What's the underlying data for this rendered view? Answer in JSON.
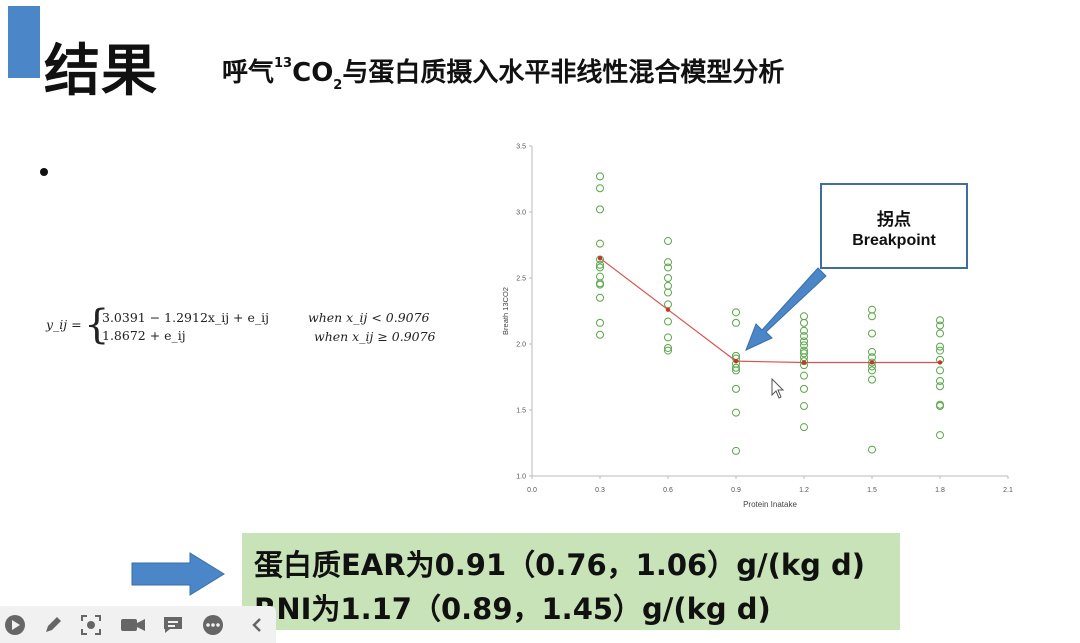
{
  "slide": {
    "heading": "结果",
    "subtitle": {
      "prefix": "呼气",
      "superscript": "13",
      "middle": "CO",
      "subscript": "2",
      "suffix": "与蛋白质摄入水平非线性混合模型分析"
    }
  },
  "equation": {
    "lhs": "y_ij =",
    "row1": "3.0391 − 1.2912x_ij + e_ij",
    "row2": "1.8672 + e_ij",
    "cond1": "when  x_ij < 0.9076",
    "cond2": "when  x_ij ≥ 0.9076"
  },
  "chart_data": {
    "type": "scatter",
    "xlabel": "Protein Inatake",
    "ylabel": "Breath 13CO2",
    "xlim": [
      0.0,
      2.1
    ],
    "ylim": [
      1.0,
      3.5
    ],
    "xticks": [
      "0.0",
      "0.3",
      "0.6",
      "0.9",
      "1.2",
      "1.5",
      "1.8",
      "2.1"
    ],
    "yticks": [
      "1.0",
      "1.5",
      "2.0",
      "2.5",
      "3.0",
      "3.5"
    ],
    "grid": false,
    "point_color": "#5aa64a",
    "line_color": "#d9534f",
    "points": [
      {
        "x": 0.3,
        "y": [
          3.27,
          3.18,
          3.02,
          2.76,
          2.64,
          2.6,
          2.58,
          2.51,
          2.46,
          2.45,
          2.35,
          2.16,
          2.07
        ]
      },
      {
        "x": 0.6,
        "y": [
          2.78,
          2.62,
          2.58,
          2.5,
          2.44,
          2.39,
          2.3,
          2.17,
          2.05,
          1.97,
          1.95
        ]
      },
      {
        "x": 0.9,
        "y": [
          2.24,
          2.16,
          1.91,
          1.89,
          1.85,
          1.82,
          1.8,
          1.66,
          1.48,
          1.19
        ]
      },
      {
        "x": 1.2,
        "y": [
          2.21,
          2.16,
          2.1,
          2.06,
          2.02,
          1.99,
          1.95,
          1.93,
          1.9,
          1.87,
          1.84,
          1.76,
          1.66,
          1.53,
          1.37
        ]
      },
      {
        "x": 1.5,
        "y": [
          2.26,
          2.21,
          2.08,
          1.94,
          1.9,
          1.86,
          1.83,
          1.8,
          1.73,
          1.2
        ]
      },
      {
        "x": 1.8,
        "y": [
          2.18,
          2.14,
          2.08,
          1.98,
          1.95,
          1.88,
          1.8,
          1.72,
          1.68,
          1.54,
          1.53,
          1.31
        ]
      }
    ],
    "fit_line": {
      "x": [
        0.3,
        0.6,
        0.9,
        1.2,
        1.5,
        1.8
      ],
      "y": [
        2.65,
        2.26,
        1.87,
        1.86,
        1.86,
        1.86
      ]
    },
    "annotation": {
      "label_zh": "拐点",
      "label_en": "Breakpoint"
    }
  },
  "result": {
    "line1": "蛋白质EAR为0.91（0.76，1.06）g/(kg d)",
    "line2": "RNI为1.17（0.89，1.45）g/(kg d)"
  },
  "toolbar": {
    "buttons": [
      "play-icon",
      "pen-icon",
      "screenshot-icon",
      "camera-icon",
      "comment-icon",
      "more-icon",
      "collapse-icon"
    ],
    "colors": {
      "icon": "#666666",
      "background": "#f1f1f1"
    }
  }
}
